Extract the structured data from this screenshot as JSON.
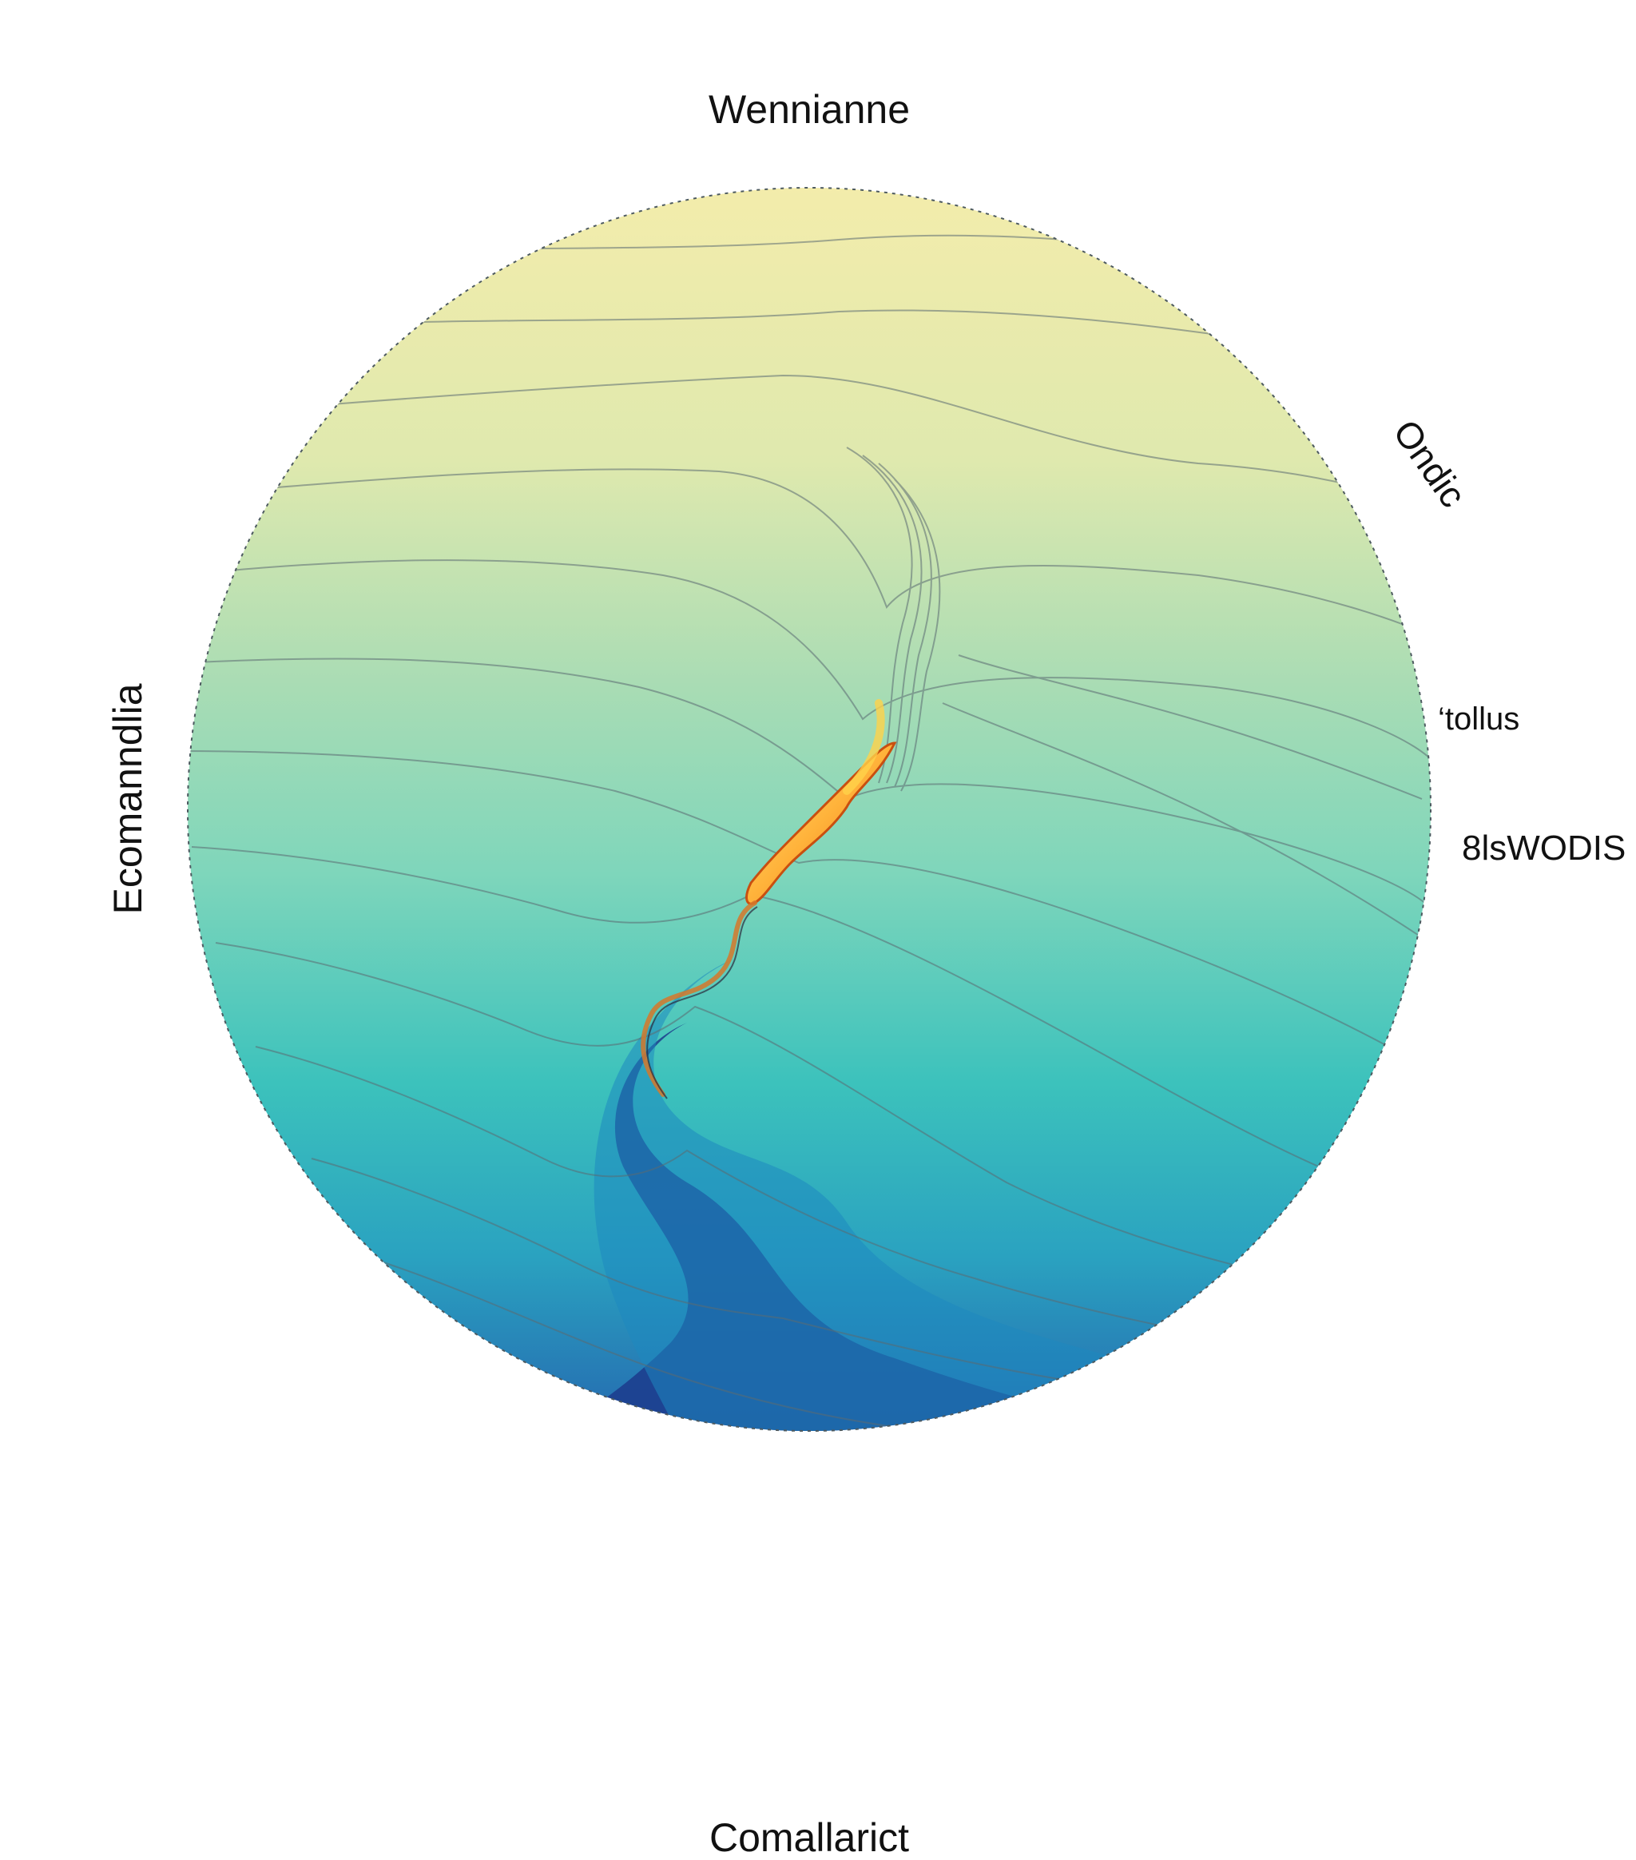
{
  "labels": {
    "top": "Wennianne",
    "bottom": "Comallarict",
    "left": "Ecomanndlia",
    "upper_right": "Ondic",
    "right_1": "‘tollus",
    "right_2": "8lsWODIS"
  },
  "colors": {
    "top": "#f3ecab",
    "upper_mid": "#b9e2b0",
    "mid": "#7fd6bb",
    "teal": "#3cc2bc",
    "blue": "#1e88bf",
    "deep": "#1c3b8c",
    "hot_core": "#ffd24a",
    "hot_edge": "#f07a1c",
    "contour": "#5b6b72"
  }
}
